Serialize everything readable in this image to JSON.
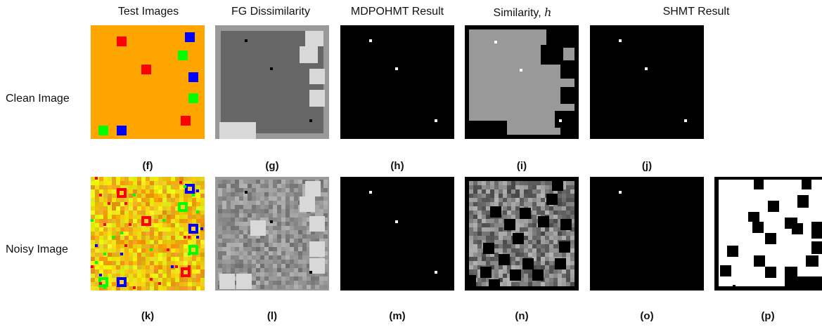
{
  "columns": {
    "test_images": "Test Images",
    "fg_dissimilarity": "FG Dissimilarity",
    "mdpohmt_result": "MDPOHMT Result",
    "similarity_prefix": "Similarity,",
    "similarity_symbol": "h",
    "shmt_result": "SHMT Result"
  },
  "rows": {
    "clean": "Clean Image",
    "noisy": "Noisy Image"
  },
  "captions": {
    "f": "(f)",
    "g": "(g)",
    "h": "(h)",
    "i": "(i)",
    "j": "(j)",
    "k": "(k)",
    "l": "(l)",
    "m": "(m)",
    "n": "(n)",
    "o": "(o)",
    "p": "(p)"
  },
  "colors": {
    "background_orange": "#ffa500",
    "red": "#ff0000",
    "green": "#00ff00",
    "blue": "#0000ff",
    "black": "#000000",
    "white": "#ffffff",
    "dark_gray": "#666666",
    "mid_gray": "#999999",
    "light_gray": "#d8d8d8"
  }
}
